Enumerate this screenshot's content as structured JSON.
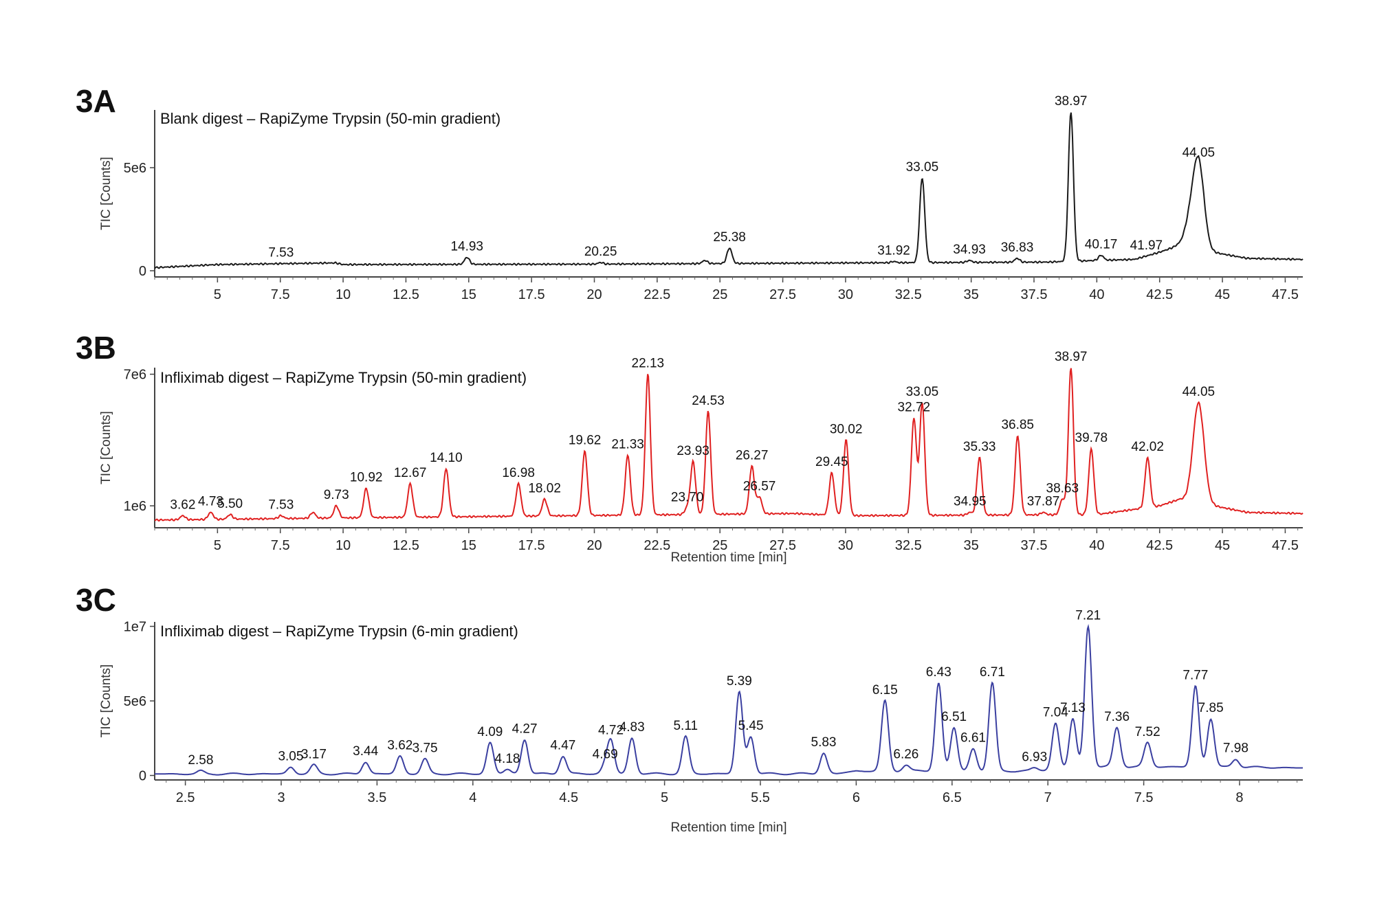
{
  "panels": [
    {
      "id": "A",
      "letter": "3A",
      "subtitle": "Blank digest – RapiZyme Trypsin (50-min gradient)",
      "ylabel": "TIC [Counts]",
      "xlabel": "",
      "yticks": [
        {
          "value": 0,
          "label": "0"
        },
        {
          "value": 5000000,
          "label": "5e6"
        }
      ],
      "xticks": [
        "5",
        "7.5",
        "10",
        "12.5",
        "15",
        "17.5",
        "20",
        "22.5",
        "25",
        "27.5",
        "30",
        "32.5",
        "35",
        "37.5",
        "40",
        "42.5",
        "45",
        "47.5"
      ],
      "color": "#1a1a1a"
    },
    {
      "id": "B",
      "letter": "3B",
      "subtitle": "Infliximab digest – RapiZyme Trypsin (50-min gradient)",
      "ylabel": "TIC [Counts]",
      "xlabel": "Retention time [min]",
      "yticks": [
        {
          "value": 1000000,
          "label": "1e6"
        },
        {
          "value": 7000000,
          "label": "7e6"
        }
      ],
      "xticks": [
        "5",
        "7.5",
        "10",
        "12.5",
        "15",
        "17.5",
        "20",
        "22.5",
        "25",
        "27.5",
        "30",
        "32.5",
        "35",
        "37.5",
        "40",
        "42.5",
        "45",
        "47.5"
      ],
      "color": "#e02020"
    },
    {
      "id": "C",
      "letter": "3C",
      "subtitle": "Infliximab digest – RapiZyme Trypsin (6-min gradient)",
      "ylabel": "TIC [Counts]",
      "xlabel": "Retention time [min]",
      "yticks": [
        {
          "value": 0,
          "label": "0"
        },
        {
          "value": 5000000,
          "label": "5e6"
        },
        {
          "value": 10000000,
          "label": "1e7"
        }
      ],
      "xticks": [
        "2.5",
        "3",
        "3.5",
        "4",
        "4.5",
        "5",
        "5.5",
        "6",
        "6.5",
        "7",
        "7.5",
        "8"
      ],
      "color": "#3a3fa0"
    }
  ],
  "chart_data": [
    {
      "type": "line",
      "title": "Blank digest – RapiZyme Trypsin (50-min gradient)",
      "xlabel": "",
      "ylabel": "TIC [Counts]",
      "xlim": [
        2.5,
        48.2
      ],
      "ylim": [
        -300000,
        7800000
      ],
      "baseline": [
        [
          2.5,
          150000
        ],
        [
          5,
          300000
        ],
        [
          9.7,
          380000
        ],
        [
          10,
          300000
        ],
        [
          20,
          320000
        ],
        [
          30,
          380000
        ],
        [
          38,
          420000
        ],
        [
          40,
          500000
        ],
        [
          41.5,
          550000
        ],
        [
          42.5,
          900000
        ],
        [
          43.2,
          1200000
        ],
        [
          46,
          600000
        ],
        [
          48.2,
          550000
        ]
      ],
      "peaks": [
        {
          "x": 7.53,
          "y": 350000,
          "label": "7.53"
        },
        {
          "x": 14.93,
          "y": 650000,
          "label": "14.93"
        },
        {
          "x": 20.25,
          "y": 400000,
          "label": "20.25"
        },
        {
          "x": 24.4,
          "y": 500000,
          "label": ""
        },
        {
          "x": 25.38,
          "y": 1100000,
          "label": "25.38"
        },
        {
          "x": 31.92,
          "y": 450000,
          "label": "31.92"
        },
        {
          "x": 33.05,
          "y": 4500000,
          "label": "33.05"
        },
        {
          "x": 34.93,
          "y": 500000,
          "label": "34.93"
        },
        {
          "x": 36.83,
          "y": 600000,
          "label": "36.83"
        },
        {
          "x": 38.97,
          "y": 7700000,
          "label": "38.97"
        },
        {
          "x": 40.17,
          "y": 750000,
          "label": "40.17"
        },
        {
          "x": 41.97,
          "y": 700000,
          "label": "41.97"
        },
        {
          "x": 43.7,
          "y": 2200000,
          "label": ""
        },
        {
          "x": 44.05,
          "y": 5200000,
          "label": "44.05"
        }
      ]
    },
    {
      "type": "line",
      "title": "Infliximab digest – RapiZyme Trypsin (50-min gradient)",
      "xlabel": "Retention time [min]",
      "ylabel": "TIC [Counts]",
      "xlim": [
        2.5,
        48.2
      ],
      "ylim": [
        0,
        7300000
      ],
      "baseline": [
        [
          2.5,
          350000
        ],
        [
          10,
          450000
        ],
        [
          28,
          650000
        ],
        [
          30,
          550000
        ],
        [
          40,
          600000
        ],
        [
          42.5,
          1000000
        ],
        [
          43.3,
          1300000
        ],
        [
          46,
          700000
        ],
        [
          48.2,
          650000
        ]
      ],
      "peaks": [
        {
          "x": 3.62,
          "y": 550000,
          "label": "3.62"
        },
        {
          "x": 4.73,
          "y": 700000,
          "label": "4.73"
        },
        {
          "x": 5.5,
          "y": 600000,
          "label": "5.50"
        },
        {
          "x": 7.53,
          "y": 550000,
          "label": "7.53"
        },
        {
          "x": 8.8,
          "y": 700000,
          "label": ""
        },
        {
          "x": 9.73,
          "y": 1000000,
          "label": "9.73"
        },
        {
          "x": 10.92,
          "y": 1800000,
          "label": "10.92"
        },
        {
          "x": 12.67,
          "y": 2000000,
          "label": "12.67"
        },
        {
          "x": 14.1,
          "y": 2700000,
          "label": "14.10"
        },
        {
          "x": 16.98,
          "y": 2000000,
          "label": "16.98"
        },
        {
          "x": 18.02,
          "y": 1300000,
          "label": "18.02"
        },
        {
          "x": 19.62,
          "y": 3500000,
          "label": "19.62"
        },
        {
          "x": 21.33,
          "y": 3300000,
          "label": "21.33"
        },
        {
          "x": 22.13,
          "y": 7000000,
          "label": "22.13"
        },
        {
          "x": 23.7,
          "y": 900000,
          "label": "23.70"
        },
        {
          "x": 23.93,
          "y": 3000000,
          "label": "23.93"
        },
        {
          "x": 24.53,
          "y": 5300000,
          "label": "24.53"
        },
        {
          "x": 26.27,
          "y": 2800000,
          "label": "26.27"
        },
        {
          "x": 26.57,
          "y": 1400000,
          "label": "26.57"
        },
        {
          "x": 29.45,
          "y": 2500000,
          "label": "29.45"
        },
        {
          "x": 30.02,
          "y": 4000000,
          "label": "30.02"
        },
        {
          "x": 32.72,
          "y": 5000000,
          "label": "32.72"
        },
        {
          "x": 33.05,
          "y": 5700000,
          "label": "33.05"
        },
        {
          "x": 34.95,
          "y": 700000,
          "label": "34.95"
        },
        {
          "x": 35.33,
          "y": 3200000,
          "label": "35.33"
        },
        {
          "x": 36.85,
          "y": 4200000,
          "label": "36.85"
        },
        {
          "x": 37.87,
          "y": 700000,
          "label": "37.87"
        },
        {
          "x": 38.63,
          "y": 1300000,
          "label": "38.63"
        },
        {
          "x": 38.97,
          "y": 7300000,
          "label": "38.97"
        },
        {
          "x": 39.78,
          "y": 3600000,
          "label": "39.78"
        },
        {
          "x": 42.02,
          "y": 3200000,
          "label": "42.02"
        },
        {
          "x": 44.05,
          "y": 5700000,
          "label": "44.05"
        }
      ]
    },
    {
      "type": "line",
      "title": "Infliximab digest – RapiZyme Trypsin (6-min gradient)",
      "xlabel": "Retention time [min]",
      "ylabel": "TIC [Counts]",
      "xlim": [
        2.34,
        8.33
      ],
      "ylim": [
        -300000,
        10300000
      ],
      "baseline": [
        [
          2.34,
          100000
        ],
        [
          5.9,
          120000
        ],
        [
          6.0,
          300000
        ],
        [
          6.4,
          300000
        ],
        [
          6.9,
          300000
        ],
        [
          7.3,
          600000
        ],
        [
          8.1,
          550000
        ],
        [
          8.33,
          500000
        ]
      ],
      "peaks": [
        {
          "x": 2.58,
          "y": 300000,
          "label": "2.58"
        },
        {
          "x": 3.05,
          "y": 550000,
          "label": "3.05"
        },
        {
          "x": 3.17,
          "y": 700000,
          "label": "3.17"
        },
        {
          "x": 3.44,
          "y": 900000,
          "label": "3.44"
        },
        {
          "x": 3.62,
          "y": 1300000,
          "label": "3.62"
        },
        {
          "x": 3.75,
          "y": 1100000,
          "label": "3.75"
        },
        {
          "x": 4.09,
          "y": 2200000,
          "label": "4.09"
        },
        {
          "x": 4.18,
          "y": 400000,
          "label": "4.18"
        },
        {
          "x": 4.27,
          "y": 2400000,
          "label": "4.27"
        },
        {
          "x": 4.47,
          "y": 1300000,
          "label": "4.47"
        },
        {
          "x": 4.69,
          "y": 700000,
          "label": "4.69"
        },
        {
          "x": 4.72,
          "y": 2300000,
          "label": "4.72"
        },
        {
          "x": 4.83,
          "y": 2500000,
          "label": "4.83"
        },
        {
          "x": 5.11,
          "y": 2600000,
          "label": "5.11"
        },
        {
          "x": 5.39,
          "y": 5600000,
          "label": "5.39"
        },
        {
          "x": 5.45,
          "y": 2600000,
          "label": "5.45"
        },
        {
          "x": 5.83,
          "y": 1500000,
          "label": "5.83"
        },
        {
          "x": 6.15,
          "y": 5000000,
          "label": "6.15"
        },
        {
          "x": 6.26,
          "y": 700000,
          "label": "6.26"
        },
        {
          "x": 6.43,
          "y": 6200000,
          "label": "6.43"
        },
        {
          "x": 6.51,
          "y": 3200000,
          "label": "6.51"
        },
        {
          "x": 6.61,
          "y": 1800000,
          "label": "6.61"
        },
        {
          "x": 6.71,
          "y": 6200000,
          "label": "6.71"
        },
        {
          "x": 6.93,
          "y": 500000,
          "label": "6.93"
        },
        {
          "x": 7.04,
          "y": 3500000,
          "label": "7.04"
        },
        {
          "x": 7.13,
          "y": 3800000,
          "label": "7.13"
        },
        {
          "x": 7.21,
          "y": 10000000,
          "label": "7.21"
        },
        {
          "x": 7.36,
          "y": 3200000,
          "label": "7.36"
        },
        {
          "x": 7.52,
          "y": 2200000,
          "label": "7.52"
        },
        {
          "x": 7.77,
          "y": 6000000,
          "label": "7.77"
        },
        {
          "x": 7.85,
          "y": 3800000,
          "label": "7.85"
        },
        {
          "x": 7.98,
          "y": 1100000,
          "label": "7.98"
        }
      ]
    }
  ]
}
